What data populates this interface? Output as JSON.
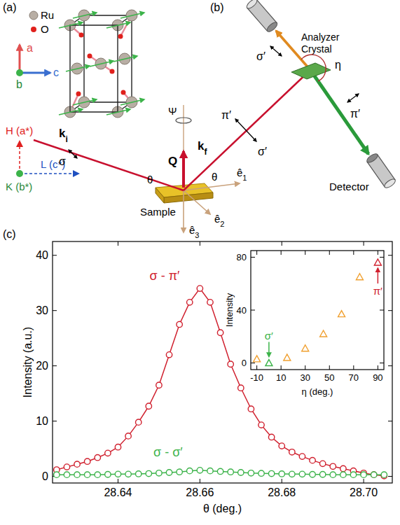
{
  "panel_labels": [
    "(a)",
    "(b)",
    "(c)"
  ],
  "diagram": {
    "legend": [
      {
        "label": "Ru",
        "color": "#b8aea4"
      },
      {
        "label": "O",
        "color": "#e0201c"
      }
    ],
    "real_axes": {
      "a": "a",
      "b": "b",
      "c": "c"
    },
    "reciprocal_axes": {
      "h": "H (a*)",
      "k": "K (b*)",
      "l": "L (c*)"
    },
    "k_in": {
      "base": "k",
      "sub": "i"
    },
    "k_out": {
      "base": "k",
      "sub": "f"
    },
    "q": "Q",
    "psi": "Ψ",
    "sigma_in": "σ",
    "theta": "θ",
    "e1": {
      "base": "ê",
      "sub": "1"
    },
    "e2": {
      "base": "ê",
      "sub": "2"
    },
    "e3": {
      "base": "ê",
      "sub": "3"
    },
    "sample": "Sample",
    "kf_pi": "π′",
    "kf_sigma": "σ′",
    "analyzer": "Analyzer Crystal",
    "eta": "η",
    "out_sigma": "σ′",
    "out_pi": "π′",
    "detector": "Detector"
  },
  "chart_data": [
    {
      "type": "line",
      "x_label": "θ (deg.)",
      "y_label": "Intensity (a.u.)",
      "xlim": [
        28.624,
        28.707
      ],
      "ylim": [
        -1.2,
        42.5
      ],
      "xticks": [
        28.64,
        28.66,
        28.68,
        {
          "value": 28.7,
          "label": "28.70"
        }
      ],
      "yticks": [
        0,
        10,
        20,
        30,
        40
      ],
      "x": [
        28.625,
        28.6275,
        28.63,
        28.6325,
        28.635,
        28.6375,
        28.64,
        28.6425,
        28.645,
        28.6475,
        28.65,
        28.6525,
        28.655,
        28.6575,
        28.66,
        28.6625,
        28.665,
        28.6675,
        28.67,
        28.6725,
        28.675,
        28.6775,
        28.68,
        28.6825,
        28.685,
        28.6875,
        28.69,
        28.6925,
        28.695,
        28.6975,
        28.7,
        28.7025,
        28.705
      ],
      "series": [
        {
          "name": "σ - π′",
          "color": "#d0202e",
          "marker": "circle",
          "line_style": "solid",
          "values": [
            1.2,
            1.7,
            2.2,
            2.7,
            3.4,
            4.2,
            5.3,
            7.3,
            9.8,
            12.7,
            16.5,
            22,
            27.5,
            31.5,
            34,
            31.5,
            26,
            20.3,
            16,
            12.2,
            9.3,
            7.1,
            5.5,
            4.4,
            3.6,
            2.9,
            2.3,
            1.8,
            1.4,
            1.0,
            0.6,
            0.3,
            0.1
          ]
        },
        {
          "name": "σ - σ′",
          "color": "#3cb34a",
          "marker": "circle",
          "line_style": "solid",
          "values": [
            0.3,
            0.3,
            0.3,
            0.3,
            0.3,
            0.35,
            0.4,
            0.4,
            0.45,
            0.5,
            0.6,
            0.7,
            0.8,
            1.0,
            1.1,
            1.0,
            0.9,
            0.8,
            0.7,
            0.6,
            0.55,
            0.5,
            0.45,
            0.4,
            0.4,
            0.35,
            0.35,
            0.3,
            0.3,
            0.3,
            0.3,
            0.3,
            0.3
          ]
        }
      ]
    },
    {
      "type": "scatter",
      "x_label": "η (deg.)",
      "y_label": "Intensity",
      "xlim": [
        -15,
        95
      ],
      "ylim": [
        -5,
        85
      ],
      "xticks": [
        -10,
        10,
        30,
        50,
        70,
        90
      ],
      "yticks": [
        0,
        40,
        80
      ],
      "x": [
        -10,
        0,
        15,
        30,
        45,
        60,
        75,
        90
      ],
      "series": [
        {
          "marker": "triangle",
          "colors": [
            "#f0a030",
            "#3cb34a",
            "#f0a030",
            "#f0a030",
            "#f0a030",
            "#f0a030",
            "#f0a030",
            "#d0202e"
          ],
          "values": [
            3,
            0,
            4,
            11,
            22,
            37,
            65,
            76
          ]
        }
      ],
      "annotations": [
        {
          "text": "σ′",
          "x": 0,
          "color": "#3cb34a"
        },
        {
          "text": "π′",
          "x": 90,
          "color": "#d0202e"
        }
      ]
    }
  ]
}
